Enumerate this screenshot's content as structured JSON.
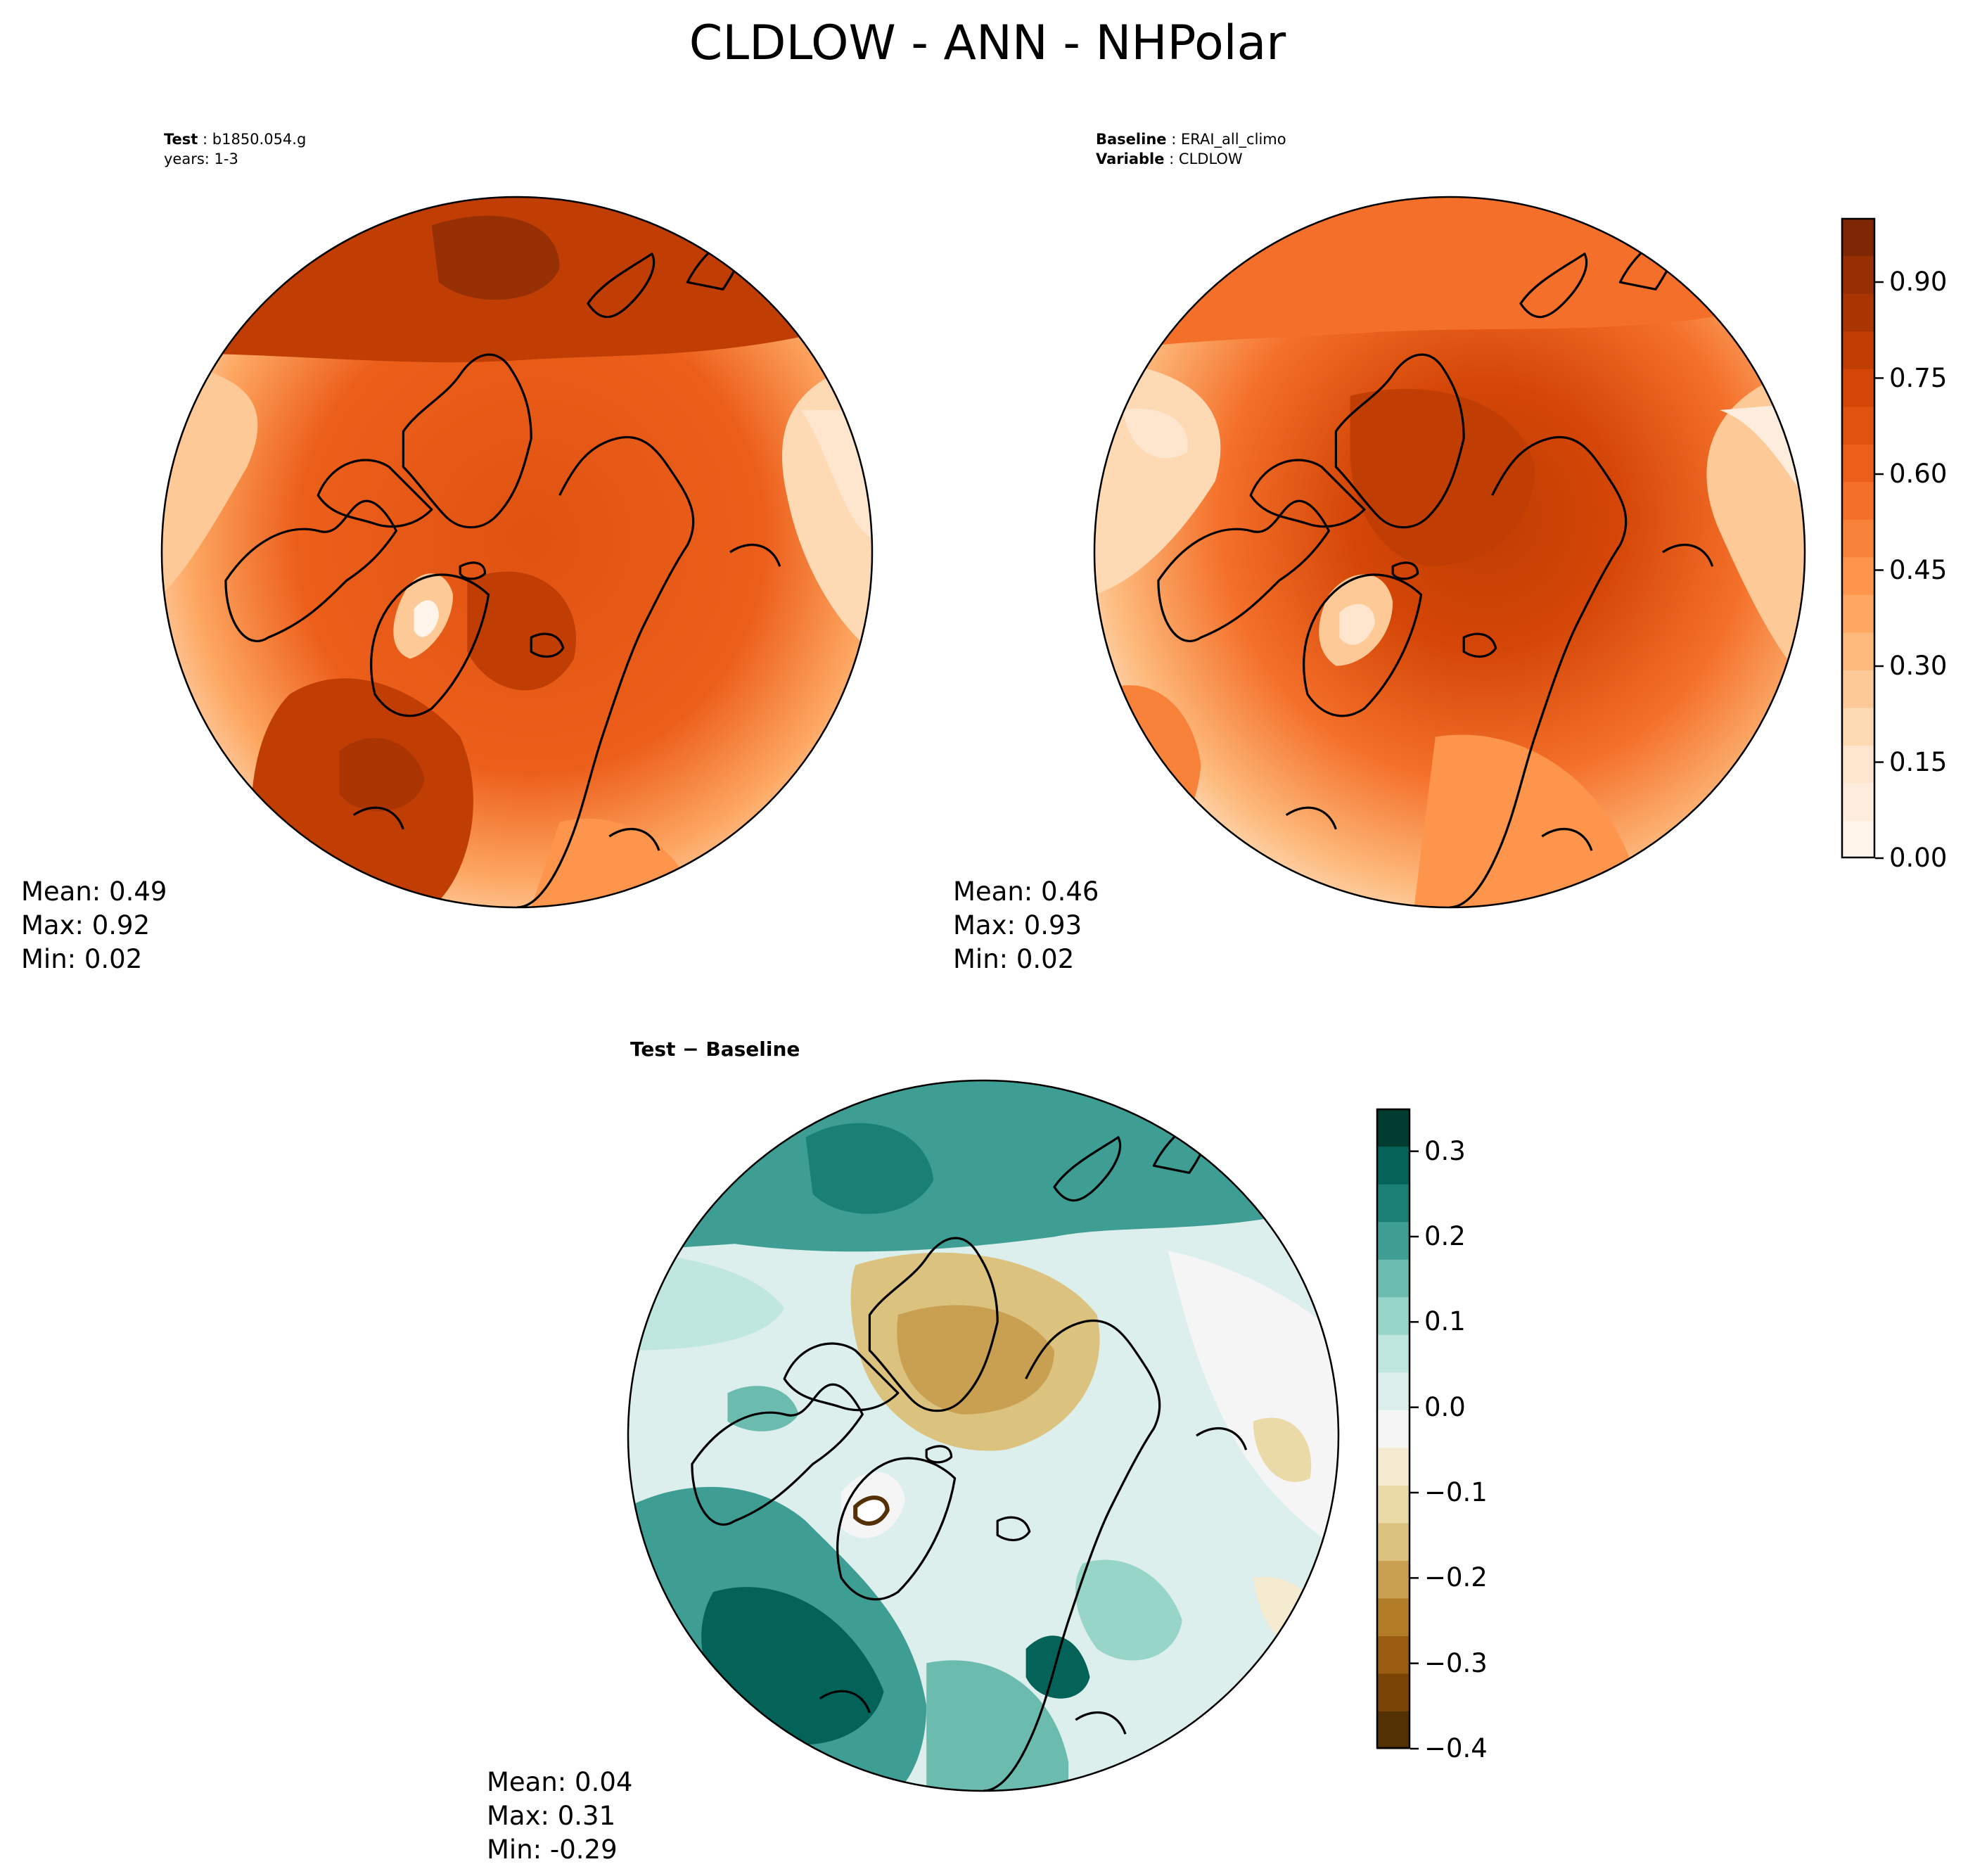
{
  "title": "CLDLOW - ANN - NHPolar",
  "panels": [
    {
      "id": "test",
      "header": [
        {
          "key": "Test",
          "value": "b1850.054.g"
        },
        {
          "key": "",
          "value": "years: 1-3"
        }
      ],
      "stats": {
        "mean": "Mean:  0.49",
        "max": "Max:  0.92",
        "min": "Min:  0.02"
      },
      "colormap": "Oranges"
    },
    {
      "id": "baseline",
      "header": [
        {
          "key": "Baseline",
          "value": "ERAI_all_climo"
        },
        {
          "key": "Variable",
          "value": "CLDLOW"
        }
      ],
      "stats": {
        "mean": "Mean:  0.46",
        "max": "Max:  0.93",
        "min": "Min:  0.02"
      },
      "colormap": "Oranges"
    },
    {
      "id": "diff",
      "header": [
        {
          "key": "Test − Baseline",
          "value": ""
        }
      ],
      "stats": {
        "mean": "Mean:  0.04",
        "max": "Max:  0.31",
        "min": "Min: -0.29"
      },
      "colormap": "BrBG"
    }
  ],
  "colorbars": {
    "main": {
      "range": [
        0,
        1
      ],
      "ticks": [
        "0.00",
        "0.15",
        "0.30",
        "0.45",
        "0.60",
        "0.75",
        "0.90"
      ],
      "tick_values": [
        0,
        0.15,
        0.3,
        0.45,
        0.6,
        0.75,
        0.9
      ],
      "colors": [
        "#fff5eb",
        "#feeddc",
        "#fee6ce",
        "#fdd9b4",
        "#fdc997",
        "#fdb97b",
        "#fda762",
        "#fd954c",
        "#f9823a",
        "#f4702a",
        "#ec5f1b",
        "#e05210",
        "#d44607",
        "#c03d03",
        "#aa3503",
        "#962f04",
        "#7f2704"
      ]
    },
    "diff": {
      "range": [
        -0.4,
        0.35
      ],
      "ticks": [
        "−0.4",
        "−0.3",
        "−0.2",
        "−0.1",
        "0.0",
        "0.1",
        "0.2",
        "0.3"
      ],
      "tick_values": [
        -0.4,
        -0.3,
        -0.2,
        -0.1,
        0.0,
        0.1,
        0.2,
        0.3
      ],
      "colors": [
        "#543005",
        "#7a4407",
        "#995c10",
        "#b37c26",
        "#c9a052",
        "#dcc27f",
        "#eadaa8",
        "#f5ebd1",
        "#f5f5f5",
        "#dcefec",
        "#bfe6df",
        "#97d5c9",
        "#6bbcaf",
        "#3f9e93",
        "#1a8076",
        "#036358",
        "#003c30"
      ]
    }
  }
}
